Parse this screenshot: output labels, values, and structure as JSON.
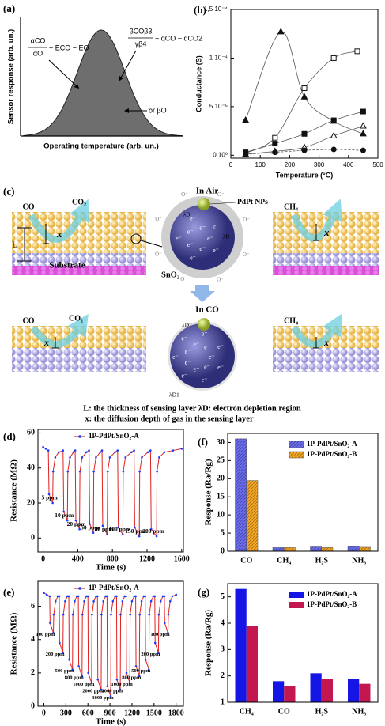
{
  "panel_a": {
    "label": "(a)",
    "ylabel": "Sensor response (arb. un.)",
    "xlabel": "Operating temperature (arb. un.)",
    "left_formula": {
      "numerator": "αCO",
      "denominator": "αO",
      "rhs": "~ ECO − EO"
    },
    "right_formula": {
      "numerator": "βCOβ3",
      "denominator": "γβ4",
      "rhs": "~ qCO − qCO2"
    },
    "note": "or βO"
  },
  "panel_c": {
    "label": "(c)",
    "in_air": "In Air",
    "in_co": "In CO",
    "pdpt": "PdPt NPs",
    "sno2": "SnO₂",
    "substrate": "Substrate",
    "L": "L",
    "gases_top": [
      "CO",
      "CO₂",
      "CH₄"
    ],
    "gases_bottom": [
      "CO",
      "CO₂",
      "CH₄"
    ],
    "x_labels": [
      "x",
      "x",
      "x",
      "x"
    ],
    "lambda_d": "λD",
    "lambda_d1": "λD1",
    "lambda_d2": "λD2",
    "air_charges": [
      "e⁻",
      "e⁻",
      "e⁻",
      "e⁻",
      "e⁻",
      "e⁻",
      "e⁻",
      "e⁻",
      "e⁻",
      "e⁻"
    ],
    "air_oxygen": [
      "O⁻",
      "O⁻",
      "O⁻",
      "O⁻",
      "O⁻",
      "O⁻",
      "O⁻",
      "O⁻"
    ],
    "co_charges": [
      "e⁻",
      "e⁻",
      "e⁻",
      "e⁻",
      "e⁻",
      "e⁻",
      "e⁻",
      "e⁻",
      "e⁻",
      "e⁻",
      "e⁻",
      "e⁻",
      "e⁻",
      "e⁻"
    ],
    "caption": [
      "L: the thickness of sensing layer  λD: electron depletion region",
      "x: the diffusion depth of gas in the sensing layer"
    ]
  },
  "chart_data": [
    {
      "type": "line",
      "panel": "(b)",
      "xlabel": "Temperature (°C)",
      "ylabel": "Conductance (S)",
      "smooth": true,
      "xlim": [
        0,
        500
      ],
      "xticks": [
        0,
        100,
        200,
        300,
        400,
        500
      ],
      "ylim": [
        -3e-06,
        0.00015
      ],
      "yticks": [
        {
          "value": 0,
          "label": "0 10⁰"
        },
        {
          "value": 5e-05,
          "label": "5 10⁻⁵"
        },
        {
          "value": 0.0001,
          "label": "1 10⁻⁴"
        },
        {
          "value": 0.00015,
          "label": "1,5 10⁻⁴"
        }
      ],
      "series": [
        {
          "color": "#555555",
          "marker": "triangle",
          "filled": true,
          "x": [
            50,
            170,
            250,
            350,
            450
          ],
          "values": [
            3.6e-05,
            0.000127,
            6e-05,
            3.5e-05,
            2.2e-05
          ]
        },
        {
          "color": "#555555",
          "marker": "square",
          "filled": false,
          "x": [
            50,
            150,
            250,
            350,
            430
          ],
          "values": [
            2e-06,
            1.8e-05,
            6.9e-05,
            0.0001,
            0.000107
          ]
        },
        {
          "color": "#555555",
          "marker": "square",
          "filled": true,
          "x": [
            50,
            150,
            250,
            350,
            450
          ],
          "values": [
            3e-06,
            1.2e-05,
            2.2e-05,
            3.6e-05,
            4.5e-05
          ]
        },
        {
          "color": "#555555",
          "marker": "triangle",
          "filled": false,
          "x": [
            50,
            150,
            250,
            350,
            450
          ],
          "values": [
            1e-06,
            4e-06,
            8e-06,
            2e-05,
            3e-05
          ]
        },
        {
          "color": "#555555",
          "marker": "circle",
          "filled": true,
          "dashed": true,
          "x": [
            50,
            150,
            250,
            350,
            450
          ],
          "values": [
            1e-06,
            3e-06,
            5e-06,
            6e-06,
            5e-06
          ]
        }
      ]
    },
    {
      "type": "line",
      "panel": "(d)",
      "xlabel": "Time (s)",
      "ylabel": "Resistance (MΩ)",
      "legend": "upper center",
      "xlim": [
        -60,
        1620
      ],
      "xticks": [
        0,
        400,
        800,
        1200,
        1600
      ],
      "ylim": [
        -8,
        62
      ],
      "yticks": [
        0,
        20,
        40,
        60
      ],
      "annotations": [
        "5 ppm",
        "10 ppm",
        "20 ppm",
        "50 ppm",
        "80 ppm",
        "100 ppm",
        "150 ppm",
        "200 ppm"
      ],
      "series": [
        {
          "name": "1P-PdPt/SnO₂-A",
          "color": "#e02020",
          "marker": "dot",
          "marker_color": "#1a3cff",
          "x": [
            0,
            30,
            60,
            68,
            110,
            115,
            140,
            180,
            230,
            238,
            280,
            285,
            310,
            350,
            370,
            378,
            420,
            425,
            450,
            500,
            530,
            538,
            580,
            585,
            610,
            660,
            680,
            688,
            740,
            745,
            770,
            830,
            860,
            868,
            920,
            925,
            950,
            1020,
            1050,
            1058,
            1110,
            1115,
            1140,
            1210,
            1240,
            1248,
            1310,
            1315,
            1340,
            1400,
            1500,
            1600
          ],
          "values": [
            52,
            51,
            50,
            25,
            20,
            38,
            46,
            49,
            50,
            15,
            10,
            38,
            46,
            49,
            50,
            10,
            5,
            38,
            46,
            49,
            50,
            8,
            3,
            38,
            46,
            49,
            50,
            7,
            2,
            38,
            46,
            49,
            50,
            6,
            2,
            38,
            46,
            49,
            50,
            6,
            1,
            38,
            46,
            49,
            50,
            5,
            1,
            38,
            46,
            49,
            50,
            51
          ]
        }
      ]
    },
    {
      "type": "line",
      "panel": "(e)",
      "xlabel": "Time (s)",
      "ylabel": "Resistance (MΩ)",
      "legend": "upper center",
      "xlim": [
        -80,
        1900
      ],
      "xticks": [
        0,
        300,
        600,
        900,
        1200,
        1500,
        1800
      ],
      "ylim": [
        0,
        7.5
      ],
      "yticks": [
        0,
        2,
        4,
        6
      ],
      "annotations": [
        "100 ppm",
        "200 ppm",
        "500 ppm",
        "800 ppm",
        "1000 ppm",
        "2000 ppm",
        "3000 ppm",
        "2000 ppm",
        "1000 ppm",
        "800 ppm",
        "500 ppm",
        "200 ppm",
        "100 ppm"
      ],
      "series": [
        {
          "name": "1P-PdPt/SnO₂-A",
          "color": "#e02020",
          "marker": "dot",
          "marker_color": "#1a3cff",
          "x": [
            0,
            40,
            80,
            85,
            130,
            135,
            160,
            190,
            210,
            215,
            260,
            265,
            290,
            320,
            340,
            345,
            390,
            395,
            420,
            450,
            470,
            475,
            520,
            525,
            550,
            580,
            600,
            605,
            650,
            655,
            680,
            710,
            730,
            735,
            780,
            785,
            810,
            840,
            860,
            865,
            910,
            915,
            940,
            970,
            990,
            995,
            1040,
            1045,
            1070,
            1100,
            1120,
            1125,
            1170,
            1175,
            1200,
            1230,
            1250,
            1255,
            1300,
            1305,
            1330,
            1360,
            1380,
            1385,
            1430,
            1435,
            1460,
            1490,
            1510,
            1515,
            1560,
            1565,
            1590,
            1620,
            1640,
            1645,
            1690,
            1695,
            1720,
            1750,
            1800
          ],
          "values": [
            6.8,
            6.7,
            6.6,
            5.0,
            4.4,
            5.5,
            6.3,
            6.6,
            6.6,
            3.8,
            3.2,
            5.5,
            6.3,
            6.6,
            6.6,
            2.8,
            2.2,
            5.5,
            6.3,
            6.6,
            6.6,
            2.4,
            1.8,
            5.5,
            6.3,
            6.6,
            6.6,
            2.0,
            1.4,
            5.5,
            6.3,
            6.6,
            6.6,
            1.6,
            1.0,
            5.5,
            6.3,
            6.6,
            6.6,
            1.2,
            0.6,
            5.5,
            6.3,
            6.6,
            6.6,
            1.6,
            1.0,
            5.5,
            6.3,
            6.6,
            6.6,
            2.0,
            1.4,
            5.5,
            6.3,
            6.6,
            6.6,
            2.4,
            1.8,
            5.5,
            6.3,
            6.6,
            6.6,
            2.8,
            2.2,
            5.5,
            6.3,
            6.6,
            6.6,
            3.8,
            3.2,
            5.5,
            6.3,
            6.6,
            6.6,
            5.0,
            4.4,
            5.5,
            6.3,
            6.6,
            6.7
          ]
        }
      ]
    },
    {
      "type": "bar",
      "panel": "(f)",
      "ylabel": "Response (Ra/Rg)",
      "legend": "upper right",
      "hatch": true,
      "categories": [
        "CO",
        "CH₄",
        "H₂S",
        "NH₃"
      ],
      "ylim": [
        0,
        32.5
      ],
      "yticks": [
        0,
        5,
        10,
        15,
        20,
        25,
        30
      ],
      "series": [
        {
          "name": "1P-PdPt/SnO₂-A",
          "color": "#6a6cf0",
          "values": [
            31,
            1,
            1.2,
            1.3
          ]
        },
        {
          "name": "1P-PdPt/SnO₂-B",
          "color": "#f5a623",
          "values": [
            19.5,
            1,
            1,
            1.1
          ]
        }
      ]
    },
    {
      "type": "bar",
      "panel": "(g)",
      "ylabel": "Response (Ra/Rg)",
      "legend": "upper right",
      "hatch": false,
      "categories": [
        "CH₄",
        "CO",
        "H₂S",
        "NH₃"
      ],
      "ylim": [
        1,
        5.5
      ],
      "yticks": [
        1,
        2,
        3,
        4,
        5
      ],
      "series": [
        {
          "name": "1P-PdPt/SnO₂-A",
          "color": "#1515e6",
          "values": [
            5.3,
            1.8,
            2.1,
            1.9
          ]
        },
        {
          "name": "1P-PdPt/SnO₂-B",
          "color": "#c2184f",
          "values": [
            3.9,
            1.6,
            1.9,
            1.7
          ]
        }
      ]
    }
  ]
}
